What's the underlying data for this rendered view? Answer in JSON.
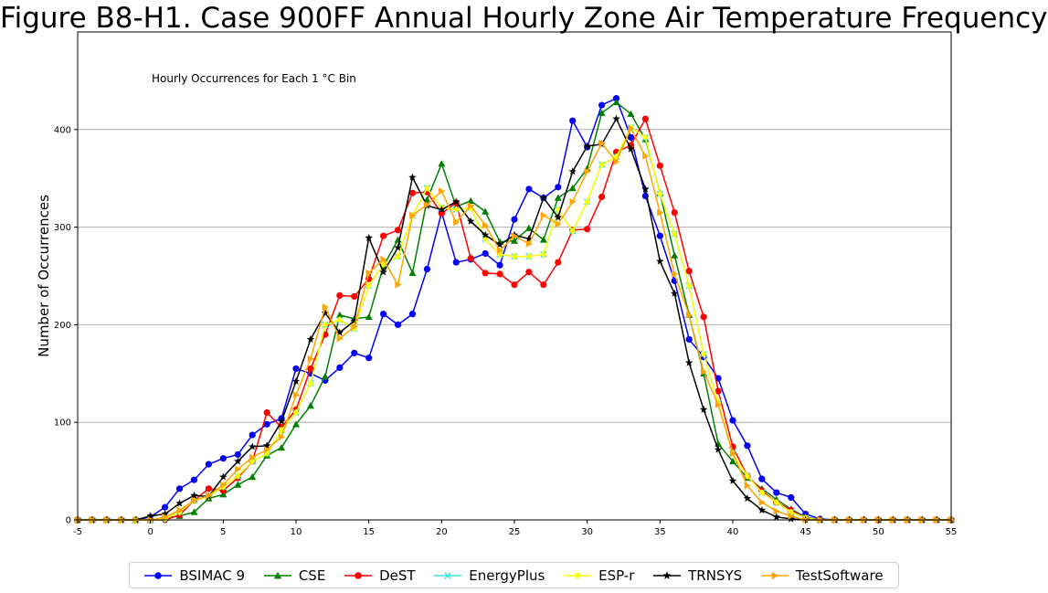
{
  "title": "Figure B8-H1. Case 900FF Annual Hourly Zone Air Temperature Frequency",
  "chart_data": {
    "type": "line",
    "annotation": "Hourly Occurrences for Each 1 °C Bin",
    "xlabel": "",
    "ylabel": "Number of Occurrences",
    "xlim": [
      -5,
      55
    ],
    "ylim": [
      0,
      500
    ],
    "xticks": [
      "-5",
      "0",
      "5",
      "10",
      "15",
      "20",
      "25",
      "30",
      "35",
      "40",
      "45",
      "50",
      "55"
    ],
    "yticks": [
      "0",
      "100",
      "200",
      "300",
      "400"
    ],
    "grid": "horizontal",
    "legend_position": "bottom",
    "x": [
      -5,
      -4,
      -3,
      -2,
      -1,
      0,
      1,
      2,
      3,
      4,
      5,
      6,
      7,
      8,
      9,
      10,
      11,
      12,
      13,
      14,
      15,
      16,
      17,
      18,
      19,
      20,
      21,
      22,
      23,
      24,
      25,
      26,
      27,
      28,
      29,
      30,
      31,
      32,
      33,
      34,
      35,
      36,
      37,
      38,
      39,
      40,
      41,
      42,
      43,
      44,
      45,
      46,
      47,
      48,
      49,
      50,
      51,
      52,
      53,
      54,
      55
    ],
    "series": [
      {
        "name": "BSIMAC 9",
        "color": "#0000ff",
        "marker": "circle",
        "values": [
          0,
          0,
          0,
          0,
          0,
          3,
          13,
          32,
          41,
          57,
          63,
          67,
          87,
          98,
          104,
          155,
          150,
          143,
          156,
          171,
          166,
          211,
          200,
          211,
          257,
          315,
          264,
          267,
          273,
          261,
          308,
          339,
          330,
          341,
          409,
          382,
          425,
          432,
          392,
          332,
          291,
          245,
          185,
          167,
          145,
          102,
          76,
          42,
          28,
          23,
          6,
          1,
          0,
          0,
          0,
          0,
          0,
          0,
          0,
          0,
          0
        ]
      },
      {
        "name": "CSE",
        "color": "#008000",
        "marker": "triangle",
        "values": [
          0,
          0,
          0,
          0,
          0,
          0,
          2,
          4,
          8,
          22,
          26,
          36,
          44,
          66,
          74,
          98,
          117,
          147,
          210,
          206,
          208,
          260,
          287,
          253,
          328,
          365,
          321,
          327,
          316,
          285,
          286,
          299,
          287,
          330,
          340,
          360,
          417,
          428,
          416,
          390,
          335,
          271,
          210,
          150,
          78,
          60,
          43,
          32,
          21,
          11,
          3,
          0,
          0,
          0,
          0,
          0,
          0,
          0,
          0,
          0,
          0
        ]
      },
      {
        "name": "DeST",
        "color": "#ff0000",
        "marker": "circle",
        "values": [
          0,
          0,
          0,
          0,
          0,
          0,
          0,
          5,
          20,
          32,
          30,
          43,
          60,
          110,
          95,
          113,
          155,
          190,
          230,
          229,
          247,
          291,
          297,
          335,
          336,
          314,
          325,
          268,
          253,
          252,
          241,
          254,
          241,
          264,
          297,
          298,
          331,
          377,
          384,
          411,
          363,
          315,
          255,
          208,
          132,
          75,
          45,
          30,
          18,
          10,
          2,
          0,
          0,
          0,
          0,
          0,
          0,
          0,
          0,
          0,
          0
        ]
      },
      {
        "name": "EnergyPlus",
        "color": "#40e0e0",
        "marker": "x",
        "values": [
          0,
          0,
          0,
          0,
          0,
          0,
          1,
          8,
          20,
          24,
          34,
          45,
          60,
          68,
          92,
          110,
          140,
          200,
          205,
          196,
          240,
          262,
          270,
          312,
          340,
          320,
          318,
          320,
          288,
          272,
          270,
          270,
          272,
          318,
          296,
          326,
          364,
          372,
          402,
          392,
          334,
          293,
          240,
          170,
          120,
          68,
          45,
          28,
          18,
          8,
          2,
          0,
          0,
          0,
          0,
          0,
          0,
          0,
          0,
          0,
          0
        ]
      },
      {
        "name": "ESP-r",
        "color": "#ffff00",
        "marker": "diamond",
        "values": [
          0,
          0,
          0,
          0,
          0,
          0,
          1,
          8,
          20,
          24,
          34,
          45,
          60,
          68,
          92,
          110,
          140,
          200,
          205,
          196,
          240,
          262,
          270,
          312,
          340,
          320,
          318,
          320,
          288,
          272,
          270,
          270,
          272,
          318,
          296,
          326,
          364,
          372,
          402,
          392,
          334,
          293,
          240,
          170,
          120,
          68,
          45,
          28,
          18,
          8,
          2,
          0,
          0,
          0,
          0,
          0,
          0,
          0,
          0,
          0,
          0
        ]
      },
      {
        "name": "TRNSYS",
        "color": "#000000",
        "marker": "star",
        "values": [
          0,
          0,
          0,
          0,
          0,
          4,
          6,
          17,
          25,
          24,
          44,
          60,
          75,
          76,
          101,
          142,
          185,
          212,
          192,
          204,
          289,
          254,
          279,
          351,
          322,
          318,
          326,
          306,
          292,
          282,
          292,
          288,
          330,
          310,
          357,
          383,
          385,
          411,
          380,
          339,
          265,
          232,
          161,
          113,
          72,
          40,
          22,
          10,
          3,
          1,
          0,
          0,
          0,
          0,
          0,
          0,
          0,
          0,
          0,
          0,
          0
        ]
      },
      {
        "name": "TestSoftware",
        "color": "#ffa500",
        "marker": "triangle-right",
        "values": [
          0,
          0,
          0,
          0,
          0,
          0,
          3,
          10,
          20,
          25,
          36,
          52,
          64,
          72,
          85,
          128,
          165,
          218,
          186,
          198,
          253,
          267,
          241,
          312,
          323,
          337,
          305,
          322,
          302,
          276,
          291,
          283,
          312,
          303,
          326,
          357,
          386,
          367,
          401,
          373,
          315,
          252,
          210,
          152,
          118,
          68,
          35,
          18,
          9,
          4,
          0,
          0,
          0,
          0,
          0,
          0,
          0,
          0,
          0,
          0,
          0
        ]
      }
    ]
  }
}
